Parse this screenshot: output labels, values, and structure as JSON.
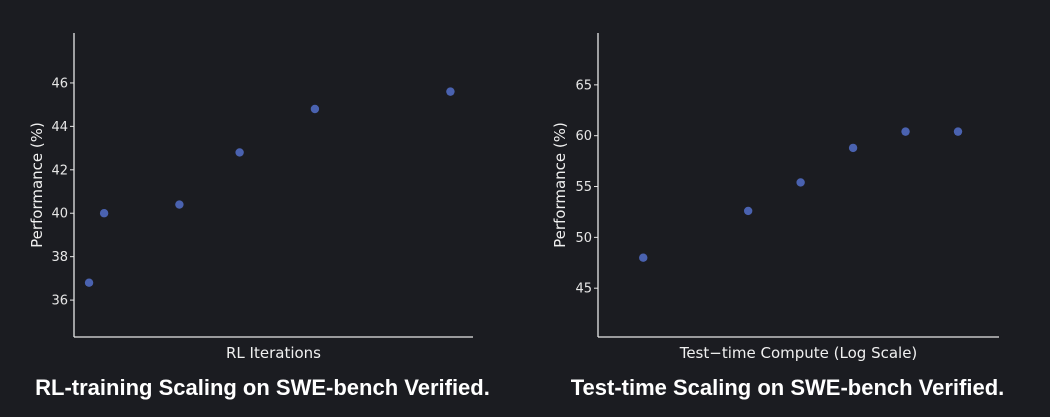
{
  "chart_data": [
    {
      "type": "scatter",
      "title": "RL-training Scaling on SWE-bench Verified.",
      "xlabel": "RL Iterations",
      "ylabel": "Performance (%)",
      "x_ticks_visible": false,
      "yticks": [
        36,
        38,
        40,
        42,
        44,
        46
      ],
      "ylim": [
        34.3,
        48.3
      ],
      "grid": false,
      "point_color": "#4a62b0",
      "series": [
        {
          "x": [
            1,
            2,
            7,
            11,
            16,
            25
          ],
          "y": [
            36.8,
            40.0,
            40.4,
            42.8,
            44.8,
            45.6
          ]
        }
      ]
    },
    {
      "type": "scatter",
      "title": "Test-time Scaling on SWE-bench Verified.",
      "xlabel": "Test−time Compute (Log Scale)",
      "ylabel": "Performance (%)",
      "x_scale": "log",
      "x_ticks_visible": false,
      "yticks": [
        45,
        50,
        55,
        60,
        65
      ],
      "ylim": [
        40.2,
        70.1
      ],
      "grid": false,
      "point_color": "#4a62b0",
      "series": [
        {
          "x": [
            1,
            4,
            8,
            16,
            32,
            64
          ],
          "y": [
            48.0,
            52.6,
            55.4,
            58.8,
            60.4,
            60.4
          ]
        }
      ]
    }
  ]
}
